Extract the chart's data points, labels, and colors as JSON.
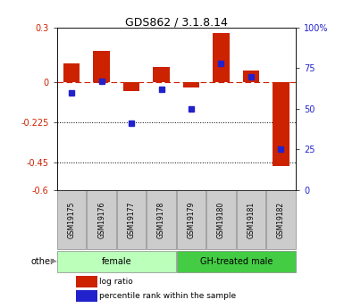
{
  "title": "GDS862 / 3.1.8.14",
  "samples": [
    "GSM19175",
    "GSM19176",
    "GSM19177",
    "GSM19178",
    "GSM19179",
    "GSM19180",
    "GSM19181",
    "GSM19182"
  ],
  "log_ratio": [
    0.1,
    0.17,
    -0.05,
    0.08,
    -0.03,
    0.27,
    0.06,
    -0.47
  ],
  "percentile_rank": [
    60,
    67,
    41,
    62,
    50,
    78,
    70,
    25
  ],
  "groups": [
    {
      "label": "female",
      "start": 0,
      "end": 4,
      "color": "#bbffbb"
    },
    {
      "label": "GH-treated male",
      "start": 4,
      "end": 8,
      "color": "#44cc44"
    }
  ],
  "ylim_left": [
    -0.6,
    0.3
  ],
  "ylim_right": [
    0,
    100
  ],
  "yticks_left": [
    0.3,
    0.0,
    -0.225,
    -0.45,
    -0.6
  ],
  "yticklabels_left": [
    "0.3",
    "0",
    "-0.225",
    "-0.45",
    "-0.6"
  ],
  "yticks_right": [
    100,
    75,
    50,
    25,
    0
  ],
  "yticklabels_right": [
    "100%",
    "75",
    "50",
    "25",
    "0"
  ],
  "hlines_dotted": [
    -0.225,
    -0.45
  ],
  "hline_dash": 0.0,
  "bar_color": "#cc2200",
  "dot_color": "#2222cc",
  "bar_width": 0.55,
  "dot_size": 45,
  "legend_labels": [
    "log ratio",
    "percentile rank within the sample"
  ],
  "legend_colors": [
    "#cc2200",
    "#2222cc"
  ],
  "other_label": "other",
  "sample_box_color": "#cccccc",
  "spine_color": "#888888"
}
